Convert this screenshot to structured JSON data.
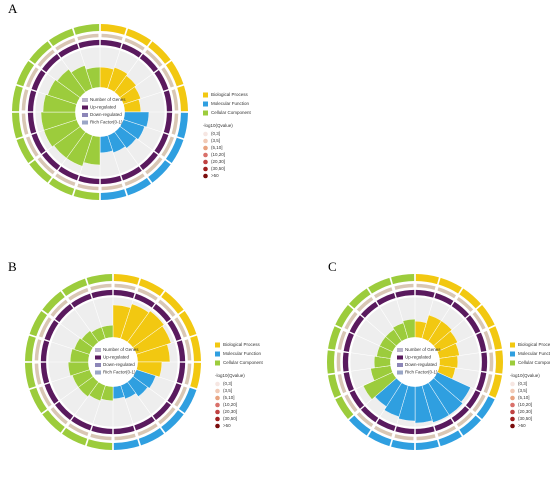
{
  "legend": {
    "categories": [
      {
        "name": "Biological Process",
        "color": "#f2c811"
      },
      {
        "name": "Molecular Function",
        "color": "#2f9fe0"
      },
      {
        "name": "Cellular Component",
        "color": "#9ccc3c"
      }
    ],
    "center_keys": [
      {
        "name": "Number of Genes",
        "color": "#b9b3c9"
      },
      {
        "name": "Up-regulated",
        "color": "#5a1a5e"
      },
      {
        "name": "Down-regulated",
        "color": "#8c86b8"
      },
      {
        "name": "Rich Factor(0-1)",
        "color": "#9aa6c6"
      }
    ],
    "qvalue_title": "-log10(Qvalue)",
    "qvalue_levels": [
      {
        "name": "(0,3]",
        "color": "#f6e6e2"
      },
      {
        "name": "(3,5]",
        "color": "#f1c9b5"
      },
      {
        "name": "(5,10]",
        "color": "#e8a27f"
      },
      {
        "name": "(10,20]",
        "color": "#d9706a"
      },
      {
        "name": "(20,30]",
        "color": "#c04242"
      },
      {
        "name": "(30,50]",
        "color": "#a02020"
      },
      {
        "name": ">50",
        "color": "#7a0c0c"
      }
    ]
  },
  "panels": [
    {
      "label": "A",
      "rich_factor": [
        [
          0.5,
          0.55,
          0.5,
          0.45,
          0.4
        ],
        [
          0.6,
          0.55,
          0.5,
          0.45,
          0.4
        ],
        [
          0.7,
          0.8,
          0.8,
          0.85,
          0.85,
          0.8,
          0.75,
          0.7,
          0.6,
          0.5
        ]
      ]
    },
    {
      "label": "B",
      "rich_factor": [
        [
          0.8,
          0.9,
          0.95,
          0.9,
          0.8,
          0.6
        ],
        [
          0.5,
          0.45,
          0.35,
          0.3
        ],
        [
          0.35,
          0.4,
          0.45,
          0.45,
          0.5,
          0.45,
          0.4,
          0.35,
          0.3,
          0.3
        ]
      ]
    },
    {
      "label": "C",
      "rich_factor": [
        [
          0.4,
          0.6,
          0.6,
          0.55,
          0.5,
          0.45,
          0.4
        ],
        [
          0.9,
          0.95,
          0.95,
          0.9,
          0.85,
          0.8,
          0.7
        ],
        [
          0.8,
          0.5,
          0.4,
          0.35,
          0.35,
          0.35,
          0.4,
          0.45
        ]
      ]
    }
  ]
}
